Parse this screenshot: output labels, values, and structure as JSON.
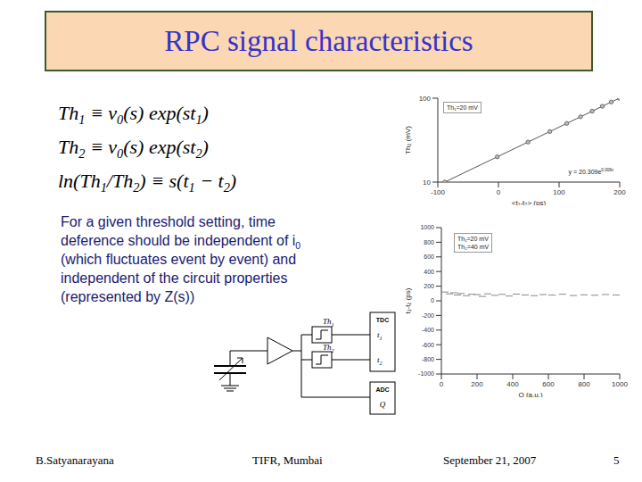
{
  "slide": {
    "title": "RPC signal characteristics",
    "equations": [
      [
        "Th",
        {
          "sub": "1"
        },
        " ≡ v",
        {
          "sub": "0"
        },
        "(s) exp(st",
        {
          "sub": "1"
        },
        ")"
      ],
      [
        "Th",
        {
          "sub": "2"
        },
        " ≡ v",
        {
          "sub": "0"
        },
        "(s) exp(st",
        {
          "sub": "2"
        },
        ")"
      ],
      [
        "ln(Th",
        {
          "sub": "1"
        },
        "/Th",
        {
          "sub": "2"
        },
        ") ≡ s(t",
        {
          "sub": "1"
        },
        " − t",
        {
          "sub": "2"
        },
        ")"
      ]
    ],
    "text_lines": [
      [
        "For a given threshold setting, time"
      ],
      [
        "deference should be independent of i",
        {
          "sub": "0"
        }
      ],
      [
        "(which fluctuates event by event) and"
      ],
      [
        "independent of the circuit properties"
      ],
      [
        "(represented by Z(s))"
      ]
    ],
    "diagram": {
      "discriminators": [
        [
          "Th",
          {
            "sub": "1"
          }
        ],
        [
          "Th",
          {
            "sub": "2"
          }
        ]
      ],
      "tdc": {
        "label": "TDC",
        "outputs": [
          [
            "t",
            {
              "sub": "1"
            }
          ],
          [
            "t",
            {
              "sub": "2"
            }
          ]
        ]
      },
      "adc": {
        "label": "ADC",
        "output": "Q"
      }
    },
    "footer": {
      "author": "B.Satyanarayana",
      "place": "TIFR, Mumbai",
      "date": "September 21, 2007",
      "page": 5
    }
  },
  "chart_data": [
    {
      "type": "line",
      "xlabel": "<t₁-t₂> (ps)",
      "ylabel": "Th₂ (mV)",
      "annotations": [
        [
          "Th₁=20 mV"
        ],
        [
          "y = 20.309e",
          {
            "sup": "0.008x"
          }
        ]
      ],
      "x": [
        -88.6,
        -1.9,
        48.8,
        84.7,
        112.6,
        135.4,
        154.6,
        171.3,
        186.1,
        199.3
      ],
      "values": [
        10,
        20,
        30,
        40,
        50,
        60,
        70,
        80,
        90,
        100
      ],
      "color": "#555555",
      "marker": "circle",
      "log": "y",
      "xlim": [
        -100,
        200
      ],
      "xticks": [
        -100,
        0,
        100,
        200
      ],
      "ylim": [
        10,
        100
      ],
      "yticks": [
        10,
        100
      ],
      "grid": false
    },
    {
      "type": "scatter",
      "xlabel": "Q (a.u.)",
      "ylabel": "t₁-t₂ (ps)",
      "annotations": [
        [
          "Th₁=20 mV"
        ],
        [
          "Th₂=40 mV"
        ]
      ],
      "x": [
        20,
        45,
        70,
        90,
        110,
        140,
        170,
        200,
        230,
        260,
        300,
        340,
        380,
        420,
        470,
        520,
        570,
        620,
        680,
        740,
        800,
        860,
        920,
        980
      ],
      "values": [
        120,
        95,
        110,
        80,
        100,
        70,
        90,
        85,
        60,
        95,
        75,
        88,
        65,
        92,
        80,
        70,
        85,
        78,
        90,
        72,
        82,
        76,
        86,
        80
      ],
      "color": "#888888",
      "marker": "dash",
      "xlim": [
        0,
        1000
      ],
      "xticks": [
        0,
        200,
        400,
        600,
        800,
        1000
      ],
      "ylim": [
        -1000,
        1000
      ],
      "yticks": [
        -1000,
        -800,
        -600,
        -400,
        -200,
        0,
        200,
        400,
        600,
        800,
        1000
      ],
      "grid": false
    }
  ]
}
